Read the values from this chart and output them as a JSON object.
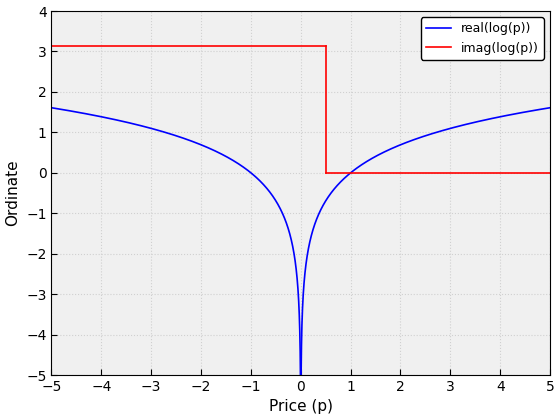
{
  "xlabel": "Price (p)",
  "ylabel": "Ordinate",
  "xlim": [
    -5,
    5
  ],
  "ylim": [
    -5,
    4
  ],
  "xticks": [
    -5,
    -4,
    -3,
    -2,
    -1,
    0,
    1,
    2,
    3,
    4,
    5
  ],
  "yticks": [
    -5,
    -4,
    -3,
    -2,
    -1,
    0,
    1,
    2,
    3,
    4
  ],
  "real_color": "#0000ff",
  "imag_color": "#ff0000",
  "real_label": "real(log(p))",
  "imag_label": "imag(log(p))",
  "background_color": "#f0f0f0",
  "grid_color": "#d0d0d0",
  "pi": 3.14159265358979,
  "imag_drop_x": 0.5
}
